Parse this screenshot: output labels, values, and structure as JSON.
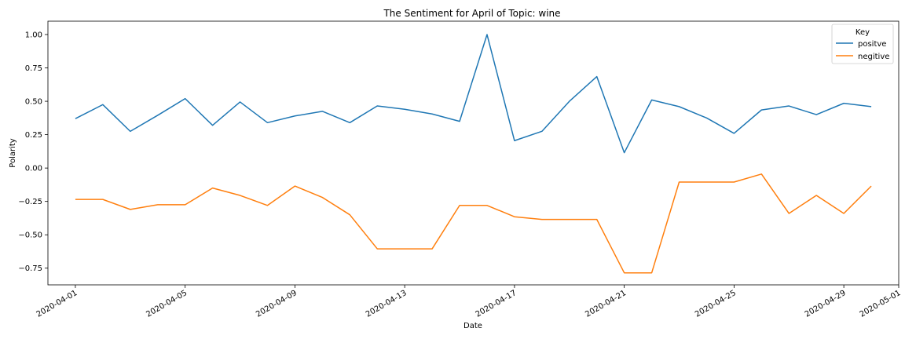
{
  "chart_data": {
    "type": "line",
    "title": "The Sentiment for April of Topic: wine",
    "xlabel": "Date",
    "ylabel": "Polarity",
    "x": [
      "2020-04-01",
      "2020-04-02",
      "2020-04-03",
      "2020-04-04",
      "2020-04-05",
      "2020-04-06",
      "2020-04-07",
      "2020-04-08",
      "2020-04-09",
      "2020-04-10",
      "2020-04-11",
      "2020-04-12",
      "2020-04-13",
      "2020-04-14",
      "2020-04-15",
      "2020-04-16",
      "2020-04-17",
      "2020-04-18",
      "2020-04-19",
      "2020-04-20",
      "2020-04-21",
      "2020-04-22",
      "2020-04-23",
      "2020-04-24",
      "2020-04-25",
      "2020-04-26",
      "2020-04-27",
      "2020-04-28",
      "2020-04-29",
      "2020-04-30"
    ],
    "series": [
      {
        "name": "positve",
        "color": "#1f77b4",
        "values": [
          0.37,
          0.475,
          0.275,
          0.395,
          0.52,
          0.32,
          0.495,
          0.34,
          0.39,
          0.425,
          0.34,
          0.465,
          0.44,
          0.405,
          0.35,
          1.0,
          0.205,
          0.275,
          0.5,
          0.685,
          0.115,
          0.51,
          0.46,
          0.375,
          0.26,
          0.435,
          0.465,
          0.4,
          0.485,
          0.46
        ]
      },
      {
        "name": "negitive",
        "color": "#ff7f0e",
        "values": [
          -0.235,
          -0.235,
          -0.31,
          -0.275,
          -0.275,
          -0.15,
          -0.205,
          -0.28,
          -0.135,
          -0.22,
          -0.35,
          -0.605,
          -0.605,
          -0.605,
          -0.28,
          -0.28,
          -0.365,
          -0.385,
          -0.385,
          -0.385,
          -0.785,
          -0.785,
          -0.105,
          -0.105,
          -0.105,
          -0.045,
          -0.34,
          -0.205,
          -0.34,
          -0.135
        ]
      }
    ],
    "x_ticks": [
      "2020-04-01",
      "2020-04-05",
      "2020-04-09",
      "2020-04-13",
      "2020-04-17",
      "2020-04-21",
      "2020-04-25",
      "2020-04-29",
      "2020-05-01"
    ],
    "y_ticks": [
      "1.00",
      "0.75",
      "0.50",
      "0.25",
      "0.00",
      "−0.25",
      "−0.50",
      "−0.75"
    ],
    "xlim": [
      "2020-03-31",
      "2020-05-01"
    ],
    "ylim": [
      -0.875,
      1.1
    ],
    "legend": {
      "title": "Key",
      "placement": "top-right"
    },
    "grid": false
  }
}
